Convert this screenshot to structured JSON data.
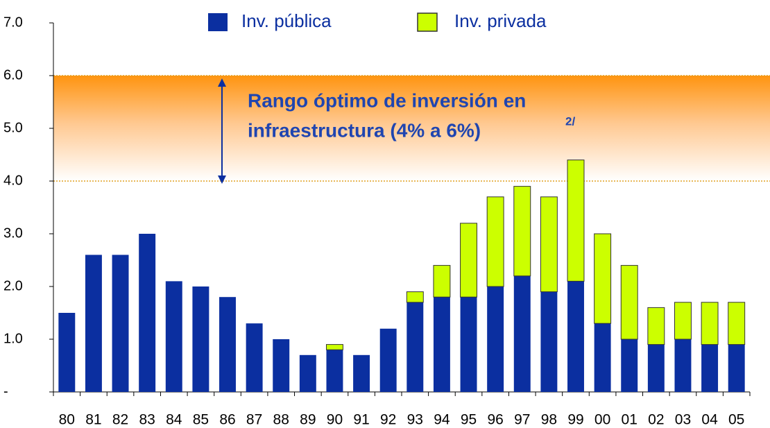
{
  "chart_data": {
    "type": "stacked_bar",
    "categories": [
      "80",
      "81",
      "82",
      "83",
      "84",
      "85",
      "86",
      "87",
      "88",
      "89",
      "90",
      "91",
      "92",
      "93",
      "94",
      "95",
      "96",
      "97",
      "98",
      "99",
      "00",
      "01",
      "02",
      "03",
      "04",
      "05"
    ],
    "series": [
      {
        "name": "Inv. pública",
        "color": "#0b2fa0",
        "values": [
          1.5,
          2.6,
          2.6,
          3.0,
          2.1,
          2.0,
          1.8,
          1.3,
          1.0,
          0.7,
          0.8,
          0.7,
          1.2,
          1.7,
          1.8,
          1.8,
          2.0,
          2.2,
          1.9,
          2.1,
          1.3,
          1.0,
          0.9,
          1.0,
          0.9,
          0.9
        ]
      },
      {
        "name": "Inv. privada",
        "color": "#ccff00",
        "values": [
          0,
          0,
          0,
          0,
          0,
          0,
          0,
          0,
          0,
          0,
          0.1,
          0,
          0,
          0.2,
          0.6,
          1.4,
          1.7,
          1.7,
          1.8,
          2.3,
          1.7,
          1.4,
          0.7,
          0.7,
          0.8,
          0.8
        ]
      }
    ],
    "ylim": [
      0,
      7
    ],
    "yticks": [
      {
        "value": 0,
        "label": "-"
      },
      {
        "value": 1,
        "label": "1.0"
      },
      {
        "value": 2,
        "label": "2.0"
      },
      {
        "value": 3,
        "label": "3.0"
      },
      {
        "value": 4,
        "label": "4.0"
      },
      {
        "value": 5,
        "label": "5.0"
      },
      {
        "value": 6,
        "label": "6.0"
      },
      {
        "value": 7,
        "label": "7.0"
      }
    ],
    "band": [
      4,
      6
    ],
    "annotation": [
      "Rango óptimo de inversión en",
      "infraestructura (4% a 6%)"
    ],
    "annotation_note": "2/"
  }
}
